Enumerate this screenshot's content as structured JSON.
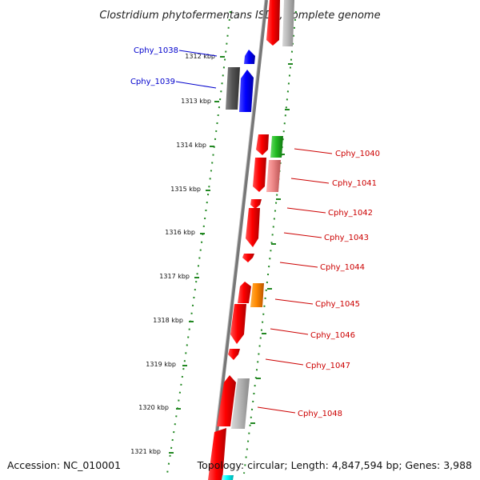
{
  "title": "Clostridium phytofermentans ISDg, complete genome",
  "footer": {
    "accession": "Accession: NC_010001",
    "topology": "Topology: circular; Length: 4,847,594 bp; Genes: 3,988"
  },
  "ticks": [
    "1312 kbp",
    "1313 kbp",
    "1314 kbp",
    "1315 kbp",
    "1316 kbp",
    "1317 kbp",
    "1318 kbp",
    "1319 kbp",
    "1320 kbp",
    "1321 kbp"
  ],
  "labels_left": [
    {
      "text": "Cphy_1038",
      "color": "#0000cc"
    },
    {
      "text": "Cphy_1039",
      "color": "#0000cc"
    }
  ],
  "labels_right": [
    {
      "text": "Cphy_1040",
      "color": "#cc0000"
    },
    {
      "text": "Cphy_1041",
      "color": "#cc0000"
    },
    {
      "text": "Cphy_1042",
      "color": "#cc0000"
    },
    {
      "text": "Cphy_1043",
      "color": "#cc0000"
    },
    {
      "text": "Cphy_1044",
      "color": "#cc0000"
    },
    {
      "text": "Cphy_1045",
      "color": "#cc0000"
    },
    {
      "text": "Cphy_1046",
      "color": "#cc0000"
    },
    {
      "text": "Cphy_1047",
      "color": "#cc0000"
    },
    {
      "text": "Cphy_1048",
      "color": "#cc0000"
    }
  ],
  "colors": {
    "forward_gene": "#ee0000",
    "reverse_gene": "#0000ee",
    "gray_gene": "#aaaaaa",
    "green_gene": "#22bb22",
    "pink_gene": "#ee8888",
    "orange_gene": "#ff8800",
    "cyan_gene": "#00ffff",
    "backbone": "#777777",
    "tick_dots": "#228822"
  }
}
